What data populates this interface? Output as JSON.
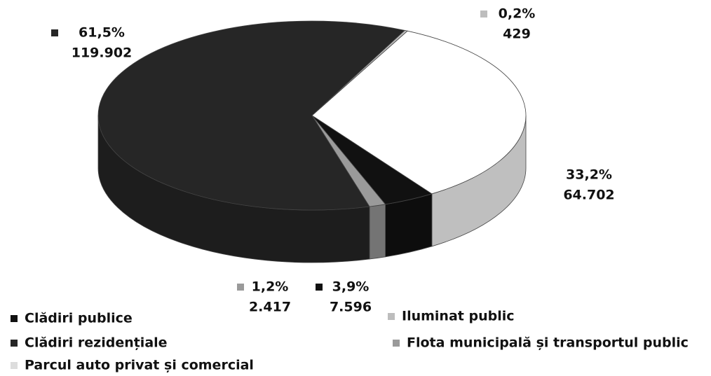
{
  "chart_data": {
    "type": "pie",
    "categories": [
      "Parcul auto privat și comercial",
      "Clădiri publice",
      "Flota municipală și transportul public",
      "Clădiri rezidențiale",
      "Iluminat public"
    ],
    "values": [
      64702,
      7596,
      2417,
      119902,
      429
    ],
    "value_labels": [
      "64.702",
      "7.596",
      "2.417",
      "119.902",
      "429"
    ],
    "percent_labels": [
      "33,2%",
      "3,9%",
      "1,2%",
      "61,5%",
      "0,2%"
    ],
    "colors": [
      "#ffffff",
      "#111111",
      "#9a9a9a",
      "#262626",
      "#bdbdbd"
    ],
    "legend": "bottom"
  }
}
